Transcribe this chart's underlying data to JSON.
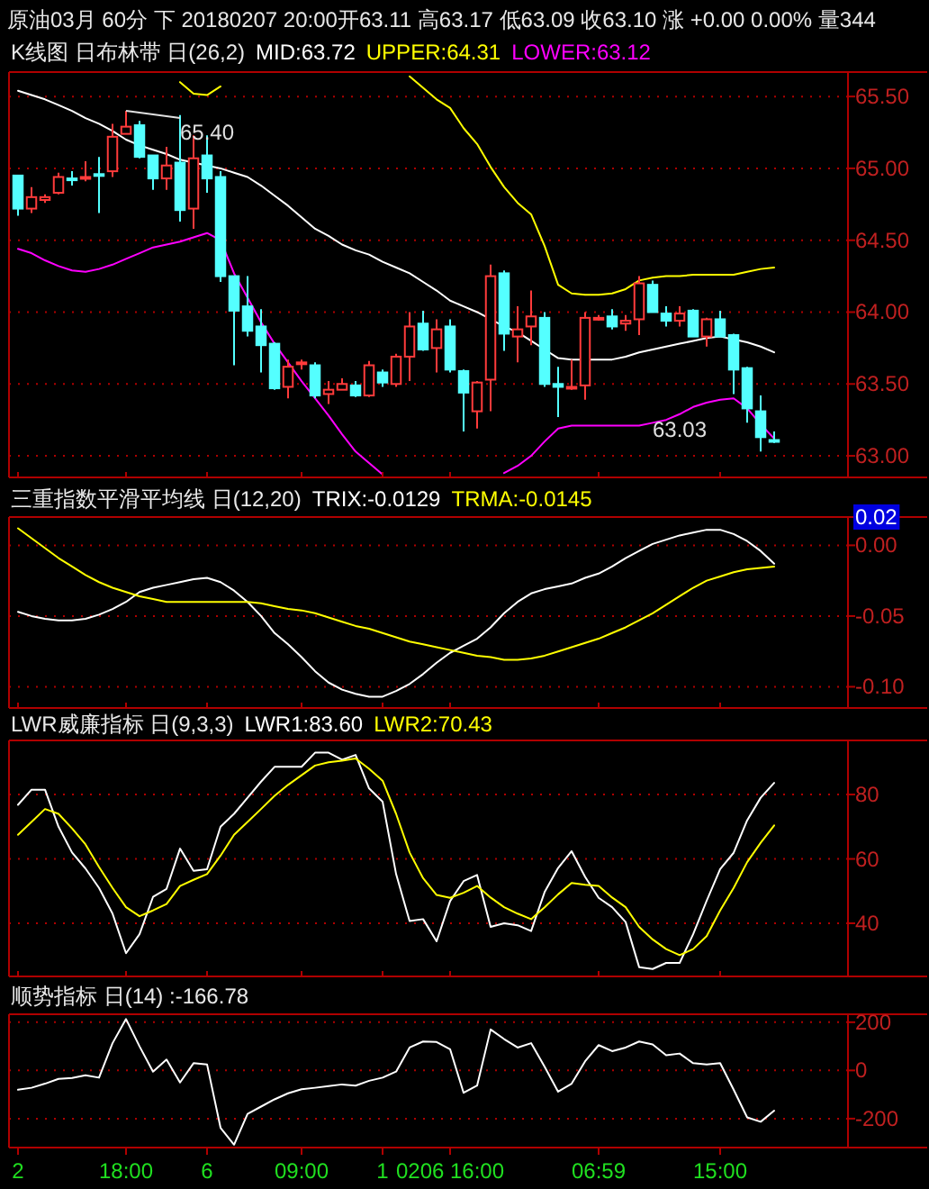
{
  "chart_data": [
    {
      "type": "candlestick",
      "title": "原油03月 60分 下 20180207 20:00开63.11 高63.17 低63.09 收63.10 涨 +0.00 0.00% 量344",
      "subtitle": "K线图 日布林带 日(26,2)",
      "categories": [
        "2",
        null,
        null,
        null,
        null,
        null,
        null,
        null,
        "18:00",
        null,
        null,
        null,
        null,
        null,
        "6",
        null,
        null,
        null,
        null,
        null,
        null,
        "09:00",
        null,
        null,
        null,
        null,
        null,
        "1",
        null,
        null,
        null,
        null,
        "0206 16:00",
        null,
        null,
        null,
        null,
        null,
        null,
        null,
        null,
        null,
        null,
        "06:59",
        null,
        null,
        null,
        null,
        null,
        null,
        null,
        null,
        "15:00",
        null,
        null,
        null,
        null
      ],
      "ohlc": [
        [
          64.95,
          64.95,
          64.67,
          64.72
        ],
        [
          64.72,
          64.87,
          64.69,
          64.8
        ],
        [
          64.78,
          64.82,
          64.76,
          64.8
        ],
        [
          64.83,
          64.97,
          64.82,
          64.94
        ],
        [
          64.93,
          64.98,
          64.88,
          64.92
        ],
        [
          64.93,
          65.05,
          64.91,
          64.94
        ],
        [
          64.96,
          65.08,
          64.69,
          64.95
        ],
        [
          64.98,
          65.31,
          64.94,
          65.22
        ],
        [
          65.24,
          65.4,
          65.24,
          65.29
        ],
        [
          65.3,
          65.33,
          65.07,
          65.08
        ],
        [
          65.09,
          65.09,
          64.85,
          64.93
        ],
        [
          64.93,
          65.15,
          64.85,
          65.02
        ],
        [
          65.04,
          65.37,
          64.63,
          64.71
        ],
        [
          64.72,
          65.23,
          64.58,
          65.07
        ],
        [
          65.09,
          65.23,
          64.83,
          64.93
        ],
        [
          64.94,
          64.98,
          64.21,
          64.25
        ],
        [
          64.25,
          64.25,
          63.63,
          64.01
        ],
        [
          64.04,
          64.25,
          63.83,
          63.87
        ],
        [
          63.9,
          64.02,
          63.58,
          63.77
        ],
        [
          63.78,
          63.79,
          63.46,
          63.47
        ],
        [
          63.48,
          63.67,
          63.4,
          63.62
        ],
        [
          63.64,
          63.67,
          63.6,
          63.65
        ],
        [
          63.63,
          63.65,
          63.4,
          63.42
        ],
        [
          63.43,
          63.52,
          63.36,
          63.46
        ],
        [
          63.46,
          63.54,
          63.46,
          63.5
        ],
        [
          63.49,
          63.52,
          63.41,
          63.42
        ],
        [
          63.42,
          63.66,
          63.41,
          63.63
        ],
        [
          63.58,
          63.6,
          63.48,
          63.51
        ],
        [
          63.5,
          63.71,
          63.48,
          63.69
        ],
        [
          63.69,
          64.0,
          63.52,
          63.9
        ],
        [
          63.92,
          64.01,
          63.73,
          63.74
        ],
        [
          63.75,
          63.95,
          63.58,
          63.88
        ],
        [
          63.9,
          63.95,
          63.58,
          63.6
        ],
        [
          63.59,
          63.6,
          63.17,
          63.44
        ],
        [
          63.31,
          63.52,
          63.19,
          63.51
        ],
        [
          63.53,
          64.33,
          63.31,
          64.25
        ],
        [
          64.27,
          64.29,
          63.73,
          63.85
        ],
        [
          63.83,
          64.04,
          63.65,
          63.88
        ],
        [
          63.9,
          64.15,
          63.77,
          63.97
        ],
        [
          63.96,
          64.0,
          63.48,
          63.5
        ],
        [
          63.5,
          63.62,
          63.27,
          63.48
        ],
        [
          63.48,
          63.67,
          63.46,
          63.48
        ],
        [
          63.49,
          64.0,
          63.39,
          63.96
        ],
        [
          63.96,
          63.98,
          63.94,
          63.96
        ],
        [
          63.97,
          64.02,
          63.88,
          63.9
        ],
        [
          63.92,
          63.98,
          63.87,
          63.94
        ],
        [
          63.95,
          64.25,
          63.84,
          64.2
        ],
        [
          64.19,
          64.22,
          64.0,
          64.0
        ],
        [
          63.99,
          64.04,
          63.9,
          63.94
        ],
        [
          63.94,
          64.04,
          63.9,
          63.99
        ],
        [
          64.01,
          64.02,
          63.83,
          63.83
        ],
        [
          63.83,
          63.96,
          63.76,
          63.95
        ],
        [
          63.95,
          64.01,
          63.83,
          63.83
        ],
        [
          63.84,
          63.85,
          63.43,
          63.6
        ],
        [
          63.61,
          63.62,
          63.23,
          63.33
        ],
        [
          63.31,
          63.42,
          63.03,
          63.13
        ],
        [
          63.11,
          63.17,
          63.09,
          63.1
        ]
      ],
      "series": [
        {
          "name": "MID:63.72",
          "type": "line",
          "color": "#ffffff",
          "values": [
            65.54,
            65.51,
            65.48,
            65.44,
            65.4,
            65.35,
            65.31,
            65.26,
            65.2,
            65.16,
            65.13,
            65.1,
            65.06,
            65.04,
            65.02,
            65.0,
            64.97,
            64.94,
            64.88,
            64.81,
            64.74,
            64.66,
            64.58,
            64.53,
            64.47,
            64.43,
            64.4,
            64.35,
            64.31,
            64.27,
            64.21,
            64.15,
            64.08,
            64.04,
            64.0,
            63.95,
            63.9,
            63.86,
            63.8,
            63.74,
            63.68,
            63.67,
            63.67,
            63.67,
            63.67,
            63.69,
            63.72,
            63.74,
            63.76,
            63.78,
            63.8,
            63.82,
            63.83,
            63.81,
            63.79,
            63.76,
            63.72
          ]
        },
        {
          "name": "UPPER:64.31",
          "type": "line",
          "color": "#ffff00",
          "values": [
            null,
            null,
            null,
            null,
            null,
            null,
            null,
            null,
            null,
            null,
            null,
            null,
            65.6,
            65.52,
            65.51,
            65.57,
            null,
            null,
            null,
            null,
            null,
            null,
            null,
            null,
            null,
            null,
            null,
            null,
            null,
            65.64,
            65.56,
            65.48,
            65.42,
            65.28,
            65.17,
            65.01,
            64.87,
            64.76,
            64.68,
            64.46,
            64.19,
            64.13,
            64.12,
            64.12,
            64.13,
            64.16,
            64.22,
            64.24,
            64.25,
            64.25,
            64.26,
            64.26,
            64.26,
            64.26,
            64.28,
            64.3,
            64.31
          ]
        },
        {
          "name": "LOWER:63.12",
          "type": "line",
          "color": "#ff00ff",
          "values": [
            64.44,
            64.41,
            64.36,
            64.32,
            64.29,
            64.28,
            64.3,
            64.33,
            64.37,
            64.41,
            64.45,
            64.47,
            64.49,
            64.52,
            64.55,
            64.5,
            64.27,
            64.1,
            63.93,
            63.78,
            63.65,
            63.52,
            63.4,
            63.28,
            63.15,
            63.03,
            62.95,
            62.87,
            null,
            null,
            null,
            null,
            null,
            null,
            null,
            null,
            62.88,
            62.93,
            63.0,
            63.1,
            63.19,
            63.21,
            63.21,
            63.21,
            63.21,
            63.21,
            63.21,
            63.23,
            63.25,
            63.29,
            63.34,
            63.37,
            63.39,
            63.4,
            63.33,
            63.22,
            63.12
          ]
        }
      ],
      "annotations": [
        {
          "text": "65.40",
          "x": "18:00",
          "y": 65.4
        },
        "63.03"
      ],
      "ylim": [
        62.85,
        65.67
      ],
      "yticks": [
        {
          "value": 63.0,
          "label": "63.00"
        },
        {
          "value": 63.5,
          "label": "63.50"
        },
        {
          "value": 64.0,
          "label": "64.00"
        },
        {
          "value": 64.5,
          "label": "64.50"
        },
        {
          "value": 65.0,
          "label": "65.00"
        },
        {
          "value": 65.5,
          "label": "65.50"
        }
      ],
      "grid": "y",
      "legend": "top",
      "tick_labels": "y"
    },
    {
      "type": "line",
      "title": "三重指数平滑平均线 日(12,20)",
      "categories": [
        "2",
        null,
        null,
        null,
        null,
        null,
        null,
        null,
        "18:00",
        null,
        null,
        null,
        null,
        null,
        "6",
        null,
        null,
        null,
        null,
        null,
        null,
        "09:00",
        null,
        null,
        null,
        null,
        null,
        "1",
        null,
        null,
        null,
        null,
        "0206 16:00",
        null,
        null,
        null,
        null,
        null,
        null,
        null,
        null,
        null,
        null,
        "06:59",
        null,
        null,
        null,
        null,
        null,
        null,
        null,
        null,
        "15:00",
        null,
        null,
        null,
        null
      ],
      "series": [
        {
          "name": "TRIX:-0.0129",
          "color": "#ffffff",
          "values": [
            -0.047,
            -0.05,
            -0.052,
            -0.053,
            -0.053,
            -0.052,
            -0.049,
            -0.045,
            -0.04,
            -0.033,
            -0.03,
            -0.028,
            -0.026,
            -0.024,
            -0.023,
            -0.026,
            -0.032,
            -0.04,
            -0.05,
            -0.062,
            -0.07,
            -0.079,
            -0.089,
            -0.097,
            -0.102,
            -0.105,
            -0.107,
            -0.107,
            -0.103,
            -0.098,
            -0.091,
            -0.083,
            -0.076,
            -0.071,
            -0.066,
            -0.058,
            -0.048,
            -0.04,
            -0.034,
            -0.031,
            -0.029,
            -0.027,
            -0.023,
            -0.02,
            -0.015,
            -0.009,
            -0.004,
            0.001,
            0.004,
            0.007,
            0.009,
            0.011,
            0.011,
            0.008,
            0.003,
            -0.004,
            -0.013
          ]
        },
        {
          "name": "TRMA:-0.0145",
          "color": "#ffff00",
          "values": [
            0.012,
            0.005,
            -0.002,
            -0.009,
            -0.015,
            -0.021,
            -0.026,
            -0.03,
            -0.033,
            -0.036,
            -0.038,
            -0.04,
            -0.04,
            -0.04,
            -0.04,
            -0.04,
            -0.04,
            -0.04,
            -0.041,
            -0.043,
            -0.045,
            -0.046,
            -0.048,
            -0.051,
            -0.054,
            -0.057,
            -0.059,
            -0.062,
            -0.065,
            -0.068,
            -0.07,
            -0.072,
            -0.074,
            -0.076,
            -0.078,
            -0.079,
            -0.081,
            -0.081,
            -0.08,
            -0.078,
            -0.075,
            -0.072,
            -0.069,
            -0.066,
            -0.062,
            -0.058,
            -0.053,
            -0.048,
            -0.042,
            -0.036,
            -0.03,
            -0.025,
            -0.022,
            -0.019,
            -0.017,
            -0.016,
            -0.015
          ]
        }
      ],
      "ylim": [
        -0.115,
        0.02
      ],
      "yticks": [
        {
          "value": 0.02,
          "label": "0.02"
        },
        {
          "value": 0.0,
          "label": "0.00"
        },
        {
          "value": -0.05,
          "label": "-0.05"
        },
        {
          "value": -0.1,
          "label": "-0.10"
        }
      ],
      "grid": "y",
      "legend": "top",
      "tick_labels": "y"
    },
    {
      "type": "line",
      "title": "LWR威廉指标 日(9,3,3)",
      "categories": [
        "2",
        null,
        null,
        null,
        null,
        null,
        null,
        null,
        "18:00",
        null,
        null,
        null,
        null,
        null,
        "6",
        null,
        null,
        null,
        null,
        null,
        null,
        "09:00",
        null,
        null,
        null,
        null,
        null,
        "1",
        null,
        null,
        null,
        null,
        "0206 16:00",
        null,
        null,
        null,
        null,
        null,
        null,
        null,
        null,
        null,
        null,
        "06:59",
        null,
        null,
        null,
        null,
        null,
        null,
        null,
        null,
        "15:00",
        null,
        null,
        null,
        null
      ],
      "series": [
        {
          "name": "LWR1:83.60",
          "color": "#ffffff",
          "values": [
            76.8,
            81.5,
            81.5,
            70,
            62,
            57,
            51,
            43,
            30.7,
            36.6,
            48.2,
            50.7,
            63.2,
            56.3,
            56.8,
            70,
            74,
            79,
            84,
            88.6,
            88.6,
            88.6,
            93,
            93,
            90.8,
            92.3,
            81.9,
            77.8,
            55.3,
            40.7,
            41.3,
            34.4,
            46.9,
            53.1,
            55,
            38.9,
            40,
            39.4,
            37.6,
            49.7,
            57.2,
            62.4,
            54.4,
            47.9,
            45,
            40.4,
            26.4,
            25.8,
            27.7,
            27.7,
            36.6,
            47,
            56.8,
            61.9,
            72,
            79,
            83.6
          ]
        },
        {
          "name": "LWR2:70.43",
          "color": "#ffff00",
          "values": [
            67.5,
            71.5,
            75.5,
            74,
            69.5,
            64.5,
            57.5,
            51,
            45,
            42.2,
            44,
            46,
            51.6,
            53.5,
            55.3,
            61,
            67.5,
            71.5,
            75.5,
            79.6,
            83,
            86,
            89,
            90,
            90.5,
            91.2,
            88,
            84.3,
            74,
            62,
            54,
            48.8,
            47.9,
            49.5,
            51.6,
            48,
            45,
            43,
            41.3,
            45,
            49,
            52.5,
            52,
            51.6,
            48,
            45,
            38.9,
            35,
            32,
            30.1,
            32,
            36,
            44,
            51,
            59,
            65,
            70.4
          ]
        }
      ],
      "ylim": [
        23.5,
        96.8
      ],
      "yticks": [
        40,
        60,
        80
      ],
      "grid": "y",
      "legend": "top left",
      "tick_labels": "y"
    },
    {
      "type": "line",
      "title": "顺势指标 日(14) :-166.78",
      "categories": [
        "2",
        null,
        null,
        null,
        null,
        null,
        null,
        null,
        "18:00",
        null,
        null,
        null,
        null,
        null,
        "6",
        null,
        null,
        null,
        null,
        null,
        null,
        "09:00",
        null,
        null,
        null,
        null,
        null,
        "1",
        null,
        null,
        null,
        null,
        "0206 16:00",
        null,
        null,
        null,
        null,
        null,
        null,
        null,
        null,
        null,
        null,
        "06:59",
        null,
        null,
        null,
        null,
        null,
        null,
        null,
        null,
        "15:00",
        null,
        null,
        null,
        null
      ],
      "series": [
        {
          "color": "#ffffff",
          "values": [
            -80,
            -72,
            -55,
            -35,
            -31,
            -20,
            -30,
            113,
            213,
            100,
            -5,
            45,
            -50,
            30,
            25,
            -238,
            -308,
            -180,
            -150,
            -120,
            -95,
            -78,
            -72,
            -65,
            -58,
            -63,
            -43,
            -30,
            -5,
            95,
            120,
            118,
            88,
            -93,
            -63,
            170,
            130,
            95,
            113,
            15,
            -88,
            -55,
            38,
            105,
            80,
            95,
            120,
            108,
            63,
            70,
            30,
            25,
            30,
            -80,
            -195,
            -213,
            -167
          ]
        }
      ],
      "ylim": [
        -320,
        233
      ],
      "yticks": [
        -200,
        0,
        200
      ],
      "grid": "y"
    }
  ]
}
